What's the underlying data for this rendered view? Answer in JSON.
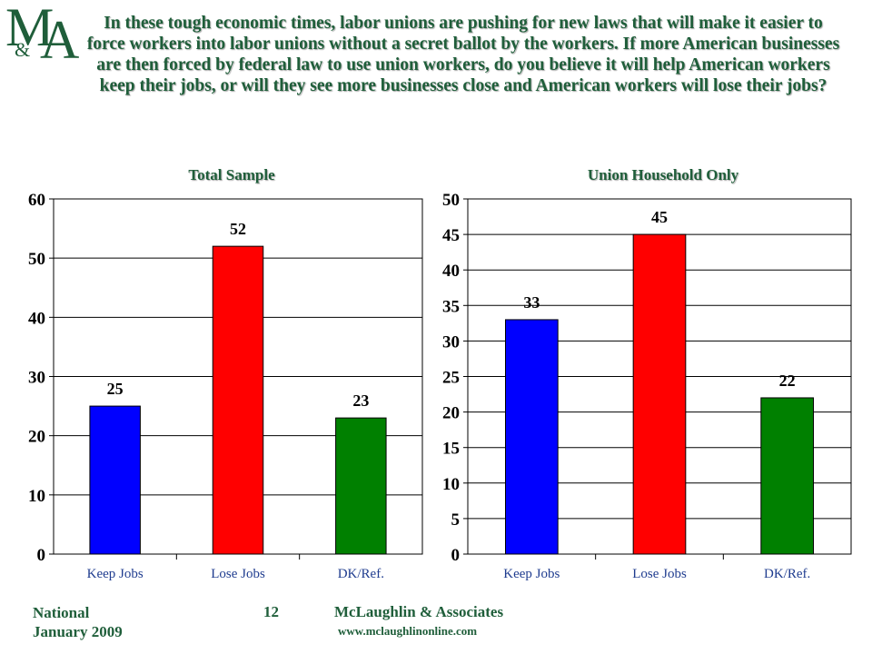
{
  "logo": {
    "m": "M",
    "amp": "&",
    "a": "A"
  },
  "question": "In these tough economic times, labor unions are pushing for new laws that will make it easier to force workers into labor unions without a secret ballot by the workers.  If more American businesses are then forced by federal law to use union workers, do you believe it will help American workers keep their jobs, or will they see more businesses close and American workers will lose their jobs?",
  "footer": {
    "line1": "National",
    "line2": "January 2009",
    "page": "12",
    "firm": "McLaughlin & Associates",
    "url": "www.mclaughlinonline.com"
  },
  "colors": {
    "keep": "#0000ff",
    "lose": "#ff0000",
    "dk": "#008000",
    "title": "#1f5e3a"
  },
  "chart_data": [
    {
      "type": "bar",
      "title": "Total Sample",
      "categories": [
        "Keep Jobs",
        "Lose Jobs",
        "DK/Ref."
      ],
      "values": [
        25,
        52,
        23
      ],
      "ylim": [
        0,
        60
      ],
      "yticks": [
        0,
        10,
        20,
        30,
        40,
        50,
        60
      ],
      "grid": true,
      "legend": "none"
    },
    {
      "type": "bar",
      "title": "Union Household Only",
      "categories": [
        "Keep Jobs",
        "Lose Jobs",
        "DK/Ref."
      ],
      "values": [
        33,
        45,
        22
      ],
      "ylim": [
        0,
        50
      ],
      "yticks": [
        0,
        5,
        10,
        15,
        20,
        25,
        30,
        35,
        40,
        45,
        50
      ],
      "grid": true,
      "legend": "none"
    }
  ]
}
